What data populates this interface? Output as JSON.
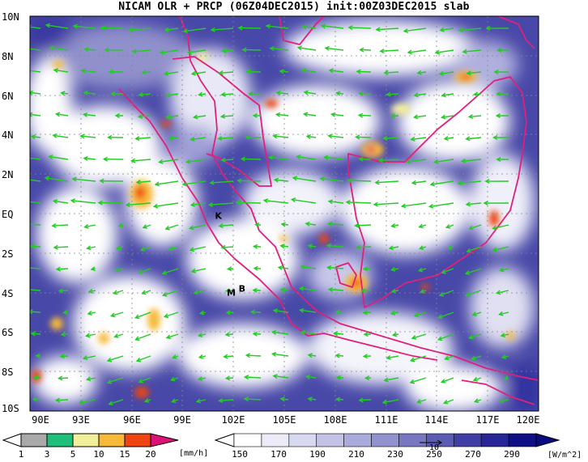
{
  "title": "NICAM OLR + PRCP (06Z04DEC2015) init:00Z03DEC2015 slab",
  "map": {
    "lon_range": [
      90,
      120
    ],
    "lat_range": [
      -10,
      10
    ],
    "lat_labels": [
      "10N",
      "8N",
      "6N",
      "4N",
      "2N",
      "EQ",
      "2S",
      "4S",
      "6S",
      "8S",
      "10S"
    ],
    "lat_values": [
      10,
      8,
      6,
      4,
      2,
      0,
      -2,
      -4,
      -6,
      -8,
      -10
    ],
    "lon_labels": [
      "90E",
      "93E",
      "96E",
      "99E",
      "102E",
      "105E",
      "108E",
      "111E",
      "114E",
      "117E",
      "120E"
    ],
    "lon_values": [
      90,
      93,
      96,
      99,
      102,
      105,
      108,
      111,
      114,
      117,
      120
    ],
    "markers": [
      {
        "label": "K",
        "lon": 101.1,
        "lat": -0.1
      },
      {
        "label": "M",
        "lon": 101.8,
        "lat": -4.0
      },
      {
        "label": "B",
        "lon": 102.5,
        "lat": -3.8
      }
    ],
    "colors": {
      "coast": "#e0207a",
      "wind": "#22cc22",
      "grid": "#888888"
    }
  },
  "prcp_legend": {
    "ticks": [
      "1",
      "3",
      "5",
      "10",
      "15",
      "20"
    ],
    "unit": "[mm/h]",
    "colors": [
      "#a8a8a8",
      "#1fbf7a",
      "#f2ef9a",
      "#f7b93a",
      "#ee4411",
      "#dd1177"
    ]
  },
  "olr_legend": {
    "ticks": [
      "150",
      "170",
      "190",
      "210",
      "230",
      "250",
      "270",
      "290"
    ],
    "unit": "[W/m^2]",
    "ref_vector": "10",
    "colors": [
      "#ffffff",
      "#ececf8",
      "#d8d8f0",
      "#c2c2e6",
      "#aaaadc",
      "#9292cf",
      "#7878c2",
      "#5c5cb4",
      "#4040a4",
      "#262696",
      "#101086"
    ]
  }
}
